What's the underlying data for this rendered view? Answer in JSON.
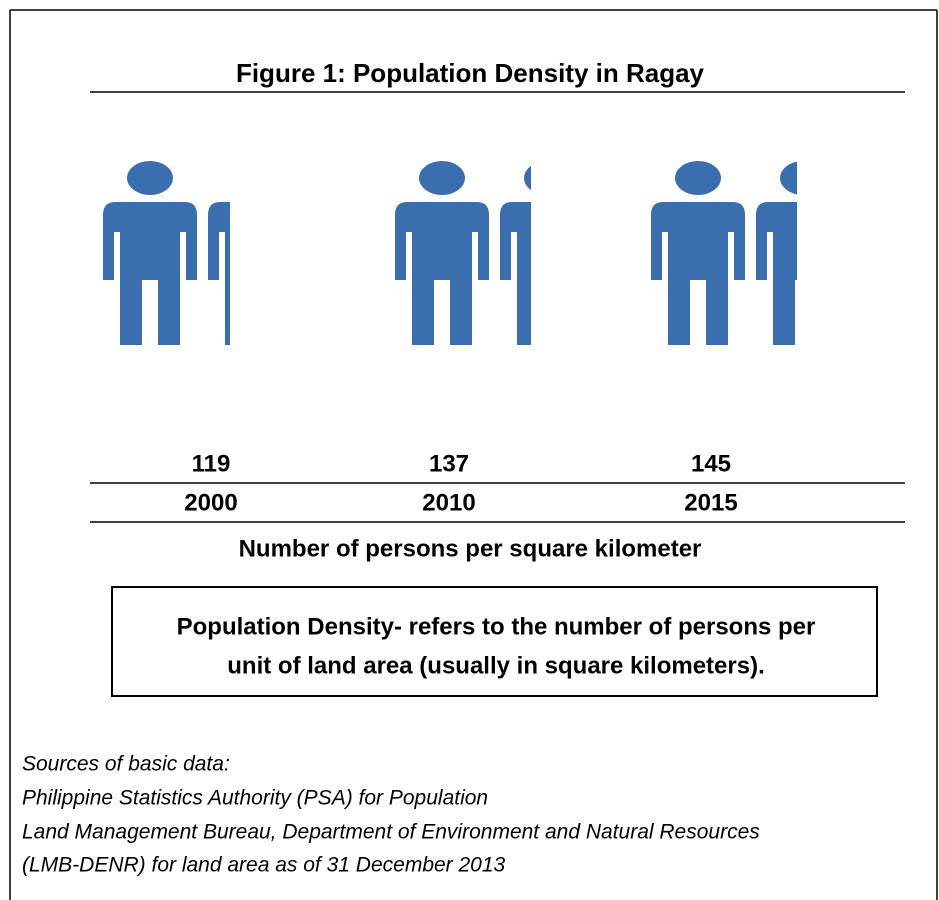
{
  "title": "Figure 1: Population Density in Ragay",
  "figures": [
    {
      "value": 119,
      "year": "2000"
    },
    {
      "value": 137,
      "year": "2010"
    },
    {
      "value": 145,
      "year": "2015"
    }
  ],
  "caption": "Number of persons per square kilometer",
  "definition": {
    "lines": [
      "Population Density- refers to the number of persons per",
      "unit of land area (usually in square kilometers)."
    ]
  },
  "sources": [
    "Sources of basic data:",
    "Philippine Statistics Authority (PSA) for Population",
    "Land Management Bureau, Department of Environment and Natural Resources",
    "(LMB-DENR) for land area as of 31 December 2013"
  ]
}
